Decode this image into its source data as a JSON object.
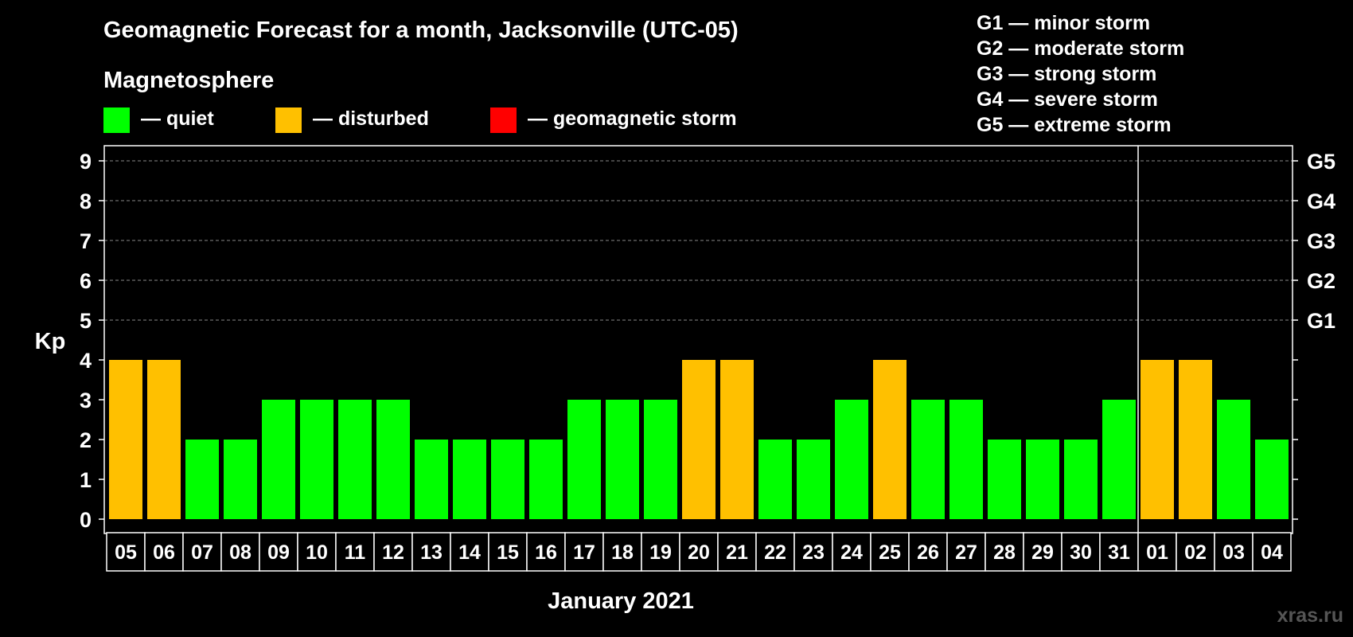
{
  "chart_data": {
    "type": "bar",
    "title": "Geomagnetic Forecast for a month, Jacksonville (UTC-05)",
    "subtitle": "Magnetosphere",
    "ylabel": "Kp",
    "xlabel": "January 2021",
    "ylim": [
      0,
      9
    ],
    "yticks": [
      "0",
      "1",
      "2",
      "3",
      "4",
      "5",
      "6",
      "7",
      "8",
      "9"
    ],
    "categories": [
      "05",
      "06",
      "07",
      "08",
      "09",
      "10",
      "11",
      "12",
      "13",
      "14",
      "15",
      "16",
      "17",
      "18",
      "19",
      "20",
      "21",
      "22",
      "23",
      "24",
      "25",
      "26",
      "27",
      "28",
      "29",
      "30",
      "31",
      "01",
      "02",
      "03",
      "04"
    ],
    "values": [
      4,
      4,
      2,
      2,
      3,
      3,
      3,
      3,
      2,
      2,
      2,
      2,
      3,
      3,
      3,
      4,
      4,
      2,
      2,
      3,
      4,
      3,
      3,
      2,
      2,
      2,
      3,
      4,
      4,
      3,
      2
    ],
    "month_separator_after_index": 26,
    "thresholds": {
      "quiet_max": 3,
      "disturbed_max": 4
    },
    "colors": {
      "quiet": "#00ff00",
      "disturbed": "#ffc000",
      "storm": "#ff0000",
      "grid": "#888888",
      "axis": "#ffffff"
    },
    "legend": [
      {
        "key": "quiet",
        "label": "— quiet",
        "color": "#00ff00"
      },
      {
        "key": "disturbed",
        "label": "— disturbed",
        "color": "#ffc000"
      },
      {
        "key": "storm",
        "label": "— geomagnetic storm",
        "color": "#ff0000"
      }
    ],
    "g_scale": [
      {
        "kp": 5,
        "label": "G1",
        "description": "G1 — minor storm"
      },
      {
        "kp": 6,
        "label": "G2",
        "description": "G2 — moderate storm"
      },
      {
        "kp": 7,
        "label": "G3",
        "description": "G3 — strong storm"
      },
      {
        "kp": 8,
        "label": "G4",
        "description": "G4 — severe storm"
      },
      {
        "kp": 9,
        "label": "G5",
        "description": "G5 — extreme storm"
      }
    ]
  },
  "watermark": "xras.ru"
}
